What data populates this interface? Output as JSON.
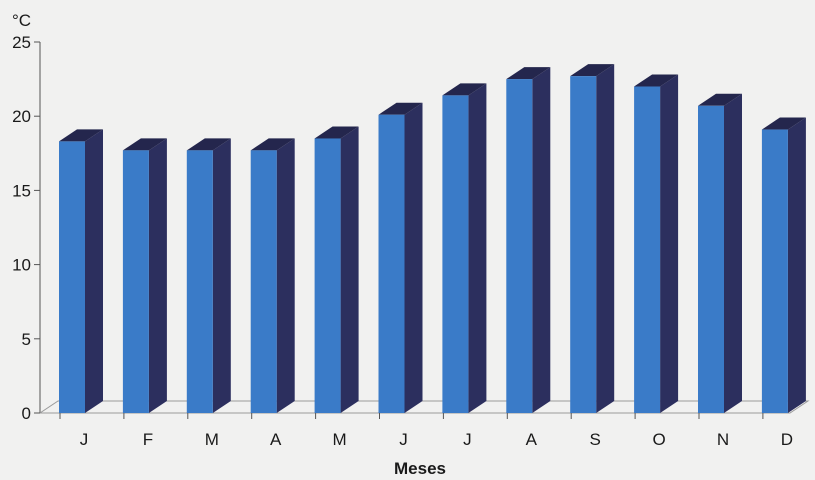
{
  "chart_data": {
    "type": "bar",
    "title": "",
    "xlabel": "Meses",
    "ylabel": "°C",
    "categories": [
      "J",
      "F",
      "M",
      "A",
      "M",
      "J",
      "J",
      "A",
      "S",
      "O",
      "N",
      "D"
    ],
    "values": [
      18.3,
      17.7,
      17.7,
      17.7,
      18.5,
      20.1,
      21.4,
      22.5,
      22.7,
      22.0,
      20.7,
      19.1
    ],
    "ylim": [
      0,
      25
    ],
    "yticks": [
      0,
      5,
      10,
      15,
      20,
      25
    ],
    "grid": false,
    "legend": "none",
    "style": "3d-bars",
    "colors": {
      "bar_front": "#3a7bc8",
      "bar_side": "#2c2f5e",
      "bar_top": "#24264d",
      "axis": "#555555",
      "background": "#f1f1f0"
    }
  }
}
